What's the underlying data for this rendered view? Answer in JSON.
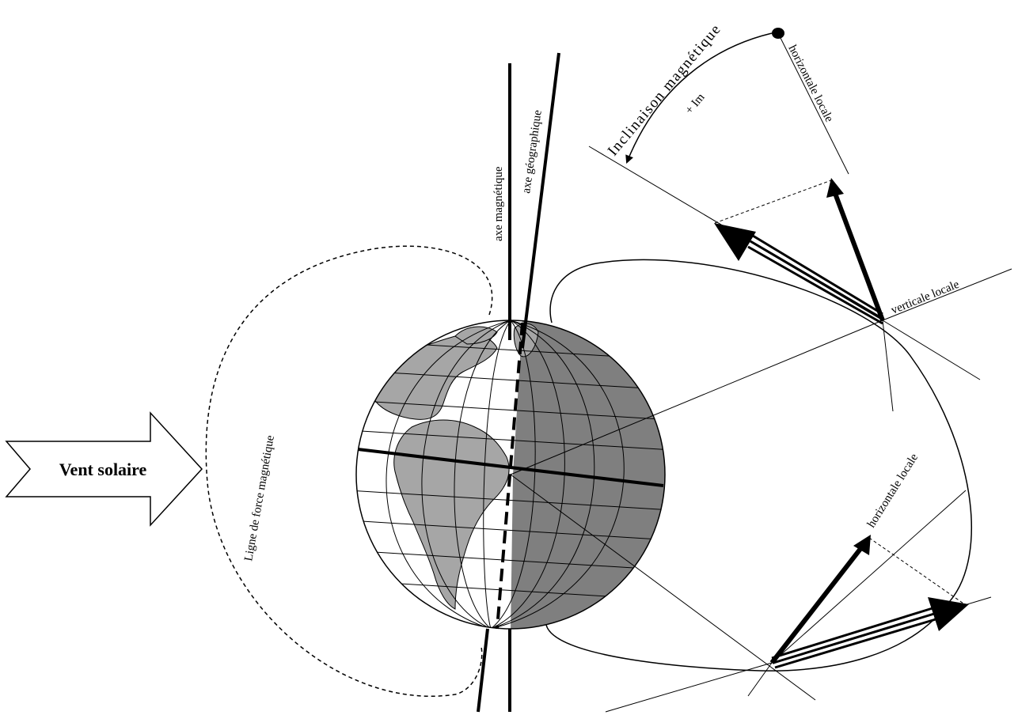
{
  "labels": {
    "vent_solaire": "Vent solaire",
    "axe_magnetique": "axe magnétique",
    "axe_geographique": "axe géographique",
    "ligne_force": "Ligne de force magnétique",
    "inclinaison": "Inclinaison magnétique",
    "plus_im": "+ Im",
    "horizontale_locale_top": "horizontale locale",
    "verticale_locale": "verticale locale",
    "horizontale_locale_bottom": "horizontale locale"
  },
  "colors": {
    "ink": "#000000",
    "land": "#a6a6a6",
    "night_side": "#7f7f7f",
    "day_side": "#ffffff"
  }
}
